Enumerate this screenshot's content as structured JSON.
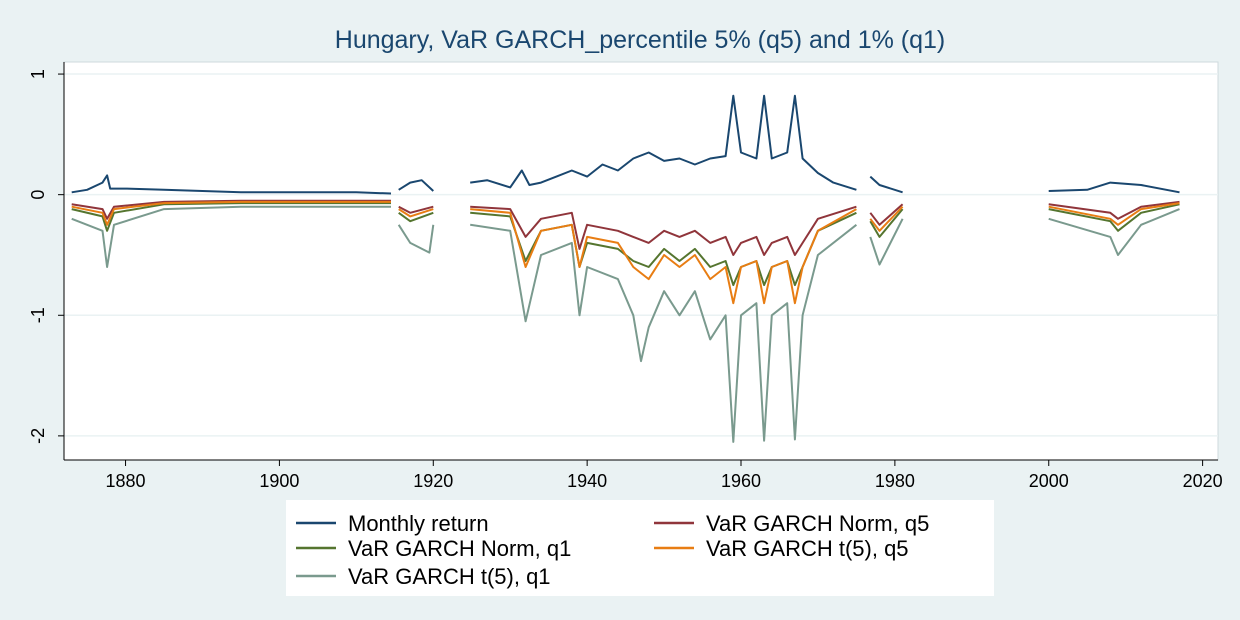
{
  "chart_data": {
    "type": "line",
    "title": "Hungary, VaR GARCH_percentile 5% (q5) and 1% (q1)",
    "xlabel": "",
    "ylabel": "",
    "xlim": [
      1872,
      2022
    ],
    "ylim": [
      -2.2,
      1.1
    ],
    "x_ticks": [
      1880,
      1900,
      1920,
      1940,
      1960,
      1980,
      2000,
      2020
    ],
    "y_ticks": [
      1,
      0,
      -1,
      -2
    ],
    "grid": true,
    "legend_position": "bottom",
    "segments": [
      [
        1873.0,
        1914.5
      ],
      [
        1915.5,
        1920.0
      ],
      [
        1924.8,
        1975.0
      ],
      [
        1976.8,
        1981.0
      ],
      [
        2000.0,
        2017.0
      ]
    ],
    "series": [
      {
        "name": "Monthly return",
        "color": "#1a476f",
        "points": [
          [
            1873.0,
            0.02
          ],
          [
            1875.0,
            0.04
          ],
          [
            1877.0,
            0.1
          ],
          [
            1877.6,
            0.16
          ],
          [
            1878.0,
            0.05
          ],
          [
            1880.0,
            0.05
          ],
          [
            1885.0,
            0.04
          ],
          [
            1890.0,
            0.03
          ],
          [
            1895.0,
            0.02
          ],
          [
            1900.0,
            0.02
          ],
          [
            1905.0,
            0.02
          ],
          [
            1910.0,
            0.02
          ],
          [
            1914.5,
            0.01
          ],
          [
            1915.5,
            0.04
          ],
          [
            1917.0,
            0.1
          ],
          [
            1918.5,
            0.12
          ],
          [
            1920.0,
            0.03
          ],
          [
            1924.8,
            0.1
          ],
          [
            1927.0,
            0.12
          ],
          [
            1930.0,
            0.06
          ],
          [
            1931.5,
            0.2
          ],
          [
            1932.5,
            0.08
          ],
          [
            1934.0,
            0.1
          ],
          [
            1936.0,
            0.15
          ],
          [
            1938.0,
            0.2
          ],
          [
            1940.0,
            0.15
          ],
          [
            1942.0,
            0.25
          ],
          [
            1944.0,
            0.2
          ],
          [
            1946.0,
            0.3
          ],
          [
            1948.0,
            0.35
          ],
          [
            1950.0,
            0.28
          ],
          [
            1952.0,
            0.3
          ],
          [
            1954.0,
            0.25
          ],
          [
            1956.0,
            0.3
          ],
          [
            1958.0,
            0.32
          ],
          [
            1959.0,
            0.82
          ],
          [
            1960.0,
            0.35
          ],
          [
            1962.0,
            0.3
          ],
          [
            1963.0,
            0.82
          ],
          [
            1964.0,
            0.3
          ],
          [
            1966.0,
            0.35
          ],
          [
            1967.0,
            0.82
          ],
          [
            1968.0,
            0.3
          ],
          [
            1970.0,
            0.18
          ],
          [
            1972.0,
            0.1
          ],
          [
            1975.0,
            0.04
          ],
          [
            1976.8,
            0.15
          ],
          [
            1978.0,
            0.08
          ],
          [
            1981.0,
            0.02
          ],
          [
            2000.0,
            0.03
          ],
          [
            2005.0,
            0.04
          ],
          [
            2008.0,
            0.1
          ],
          [
            2012.0,
            0.08
          ],
          [
            2017.0,
            0.02
          ]
        ]
      },
      {
        "name": "VaR GARCH Norm, q5",
        "color": "#90353b",
        "points": [
          [
            1873.0,
            -0.08
          ],
          [
            1877.0,
            -0.12
          ],
          [
            1877.6,
            -0.2
          ],
          [
            1878.5,
            -0.1
          ],
          [
            1885.0,
            -0.06
          ],
          [
            1895.0,
            -0.05
          ],
          [
            1905.0,
            -0.05
          ],
          [
            1914.5,
            -0.05
          ],
          [
            1915.5,
            -0.1
          ],
          [
            1917.0,
            -0.15
          ],
          [
            1920.0,
            -0.1
          ],
          [
            1924.8,
            -0.1
          ],
          [
            1930.0,
            -0.12
          ],
          [
            1932.0,
            -0.35
          ],
          [
            1934.0,
            -0.2
          ],
          [
            1938.0,
            -0.15
          ],
          [
            1939.0,
            -0.45
          ],
          [
            1940.0,
            -0.25
          ],
          [
            1944.0,
            -0.3
          ],
          [
            1946.0,
            -0.35
          ],
          [
            1948.0,
            -0.4
          ],
          [
            1950.0,
            -0.3
          ],
          [
            1952.0,
            -0.35
          ],
          [
            1954.0,
            -0.3
          ],
          [
            1956.0,
            -0.4
          ],
          [
            1958.0,
            -0.35
          ],
          [
            1959.0,
            -0.5
          ],
          [
            1960.0,
            -0.4
          ],
          [
            1962.0,
            -0.35
          ],
          [
            1963.0,
            -0.5
          ],
          [
            1964.0,
            -0.4
          ],
          [
            1966.0,
            -0.35
          ],
          [
            1967.0,
            -0.5
          ],
          [
            1968.0,
            -0.4
          ],
          [
            1970.0,
            -0.2
          ],
          [
            1975.0,
            -0.1
          ],
          [
            1976.8,
            -0.15
          ],
          [
            1978.0,
            -0.25
          ],
          [
            1981.0,
            -0.08
          ],
          [
            2000.0,
            -0.08
          ],
          [
            2008.0,
            -0.15
          ],
          [
            2009.0,
            -0.2
          ],
          [
            2012.0,
            -0.1
          ],
          [
            2017.0,
            -0.06
          ]
        ]
      },
      {
        "name": "VaR GARCH Norm, q1",
        "color": "#55752f",
        "points": [
          [
            1873.0,
            -0.12
          ],
          [
            1877.0,
            -0.18
          ],
          [
            1877.6,
            -0.3
          ],
          [
            1878.5,
            -0.15
          ],
          [
            1885.0,
            -0.08
          ],
          [
            1895.0,
            -0.07
          ],
          [
            1905.0,
            -0.07
          ],
          [
            1914.5,
            -0.07
          ],
          [
            1915.5,
            -0.15
          ],
          [
            1917.0,
            -0.22
          ],
          [
            1920.0,
            -0.15
          ],
          [
            1924.8,
            -0.15
          ],
          [
            1930.0,
            -0.18
          ],
          [
            1932.0,
            -0.55
          ],
          [
            1934.0,
            -0.3
          ],
          [
            1938.0,
            -0.25
          ],
          [
            1939.0,
            -0.6
          ],
          [
            1940.0,
            -0.4
          ],
          [
            1944.0,
            -0.45
          ],
          [
            1946.0,
            -0.55
          ],
          [
            1948.0,
            -0.6
          ],
          [
            1950.0,
            -0.45
          ],
          [
            1952.0,
            -0.55
          ],
          [
            1954.0,
            -0.45
          ],
          [
            1956.0,
            -0.6
          ],
          [
            1958.0,
            -0.55
          ],
          [
            1959.0,
            -0.75
          ],
          [
            1960.0,
            -0.6
          ],
          [
            1962.0,
            -0.55
          ],
          [
            1963.0,
            -0.75
          ],
          [
            1964.0,
            -0.6
          ],
          [
            1966.0,
            -0.55
          ],
          [
            1967.0,
            -0.75
          ],
          [
            1968.0,
            -0.6
          ],
          [
            1970.0,
            -0.3
          ],
          [
            1975.0,
            -0.15
          ],
          [
            1976.8,
            -0.22
          ],
          [
            1978.0,
            -0.35
          ],
          [
            1981.0,
            -0.12
          ],
          [
            2000.0,
            -0.12
          ],
          [
            2008.0,
            -0.22
          ],
          [
            2009.0,
            -0.3
          ],
          [
            2012.0,
            -0.15
          ],
          [
            2017.0,
            -0.08
          ]
        ]
      },
      {
        "name": "VaR GARCH t(5), q5",
        "color": "#e87d13",
        "points": [
          [
            1873.0,
            -0.1
          ],
          [
            1877.0,
            -0.15
          ],
          [
            1877.6,
            -0.25
          ],
          [
            1878.5,
            -0.12
          ],
          [
            1885.0,
            -0.07
          ],
          [
            1895.0,
            -0.06
          ],
          [
            1905.0,
            -0.06
          ],
          [
            1914.5,
            -0.06
          ],
          [
            1915.5,
            -0.12
          ],
          [
            1917.0,
            -0.18
          ],
          [
            1920.0,
            -0.12
          ],
          [
            1924.8,
            -0.12
          ],
          [
            1930.0,
            -0.15
          ],
          [
            1932.0,
            -0.6
          ],
          [
            1934.0,
            -0.3
          ],
          [
            1938.0,
            -0.25
          ],
          [
            1939.0,
            -0.6
          ],
          [
            1940.0,
            -0.35
          ],
          [
            1944.0,
            -0.4
          ],
          [
            1946.0,
            -0.6
          ],
          [
            1948.0,
            -0.7
          ],
          [
            1950.0,
            -0.5
          ],
          [
            1952.0,
            -0.6
          ],
          [
            1954.0,
            -0.5
          ],
          [
            1956.0,
            -0.7
          ],
          [
            1958.0,
            -0.6
          ],
          [
            1959.0,
            -0.9
          ],
          [
            1960.0,
            -0.6
          ],
          [
            1962.0,
            -0.55
          ],
          [
            1963.0,
            -0.9
          ],
          [
            1964.0,
            -0.6
          ],
          [
            1966.0,
            -0.55
          ],
          [
            1967.0,
            -0.9
          ],
          [
            1968.0,
            -0.6
          ],
          [
            1970.0,
            -0.3
          ],
          [
            1975.0,
            -0.12
          ],
          [
            1976.8,
            -0.2
          ],
          [
            1978.0,
            -0.3
          ],
          [
            1981.0,
            -0.1
          ],
          [
            2000.0,
            -0.1
          ],
          [
            2008.0,
            -0.2
          ],
          [
            2009.0,
            -0.25
          ],
          [
            2012.0,
            -0.12
          ],
          [
            2017.0,
            -0.07
          ]
        ]
      },
      {
        "name": "VaR GARCH t(5), q1",
        "color": "#7a9a8e",
        "points": [
          [
            1873.0,
            -0.2
          ],
          [
            1877.0,
            -0.3
          ],
          [
            1877.6,
            -0.6
          ],
          [
            1878.5,
            -0.25
          ],
          [
            1885.0,
            -0.12
          ],
          [
            1895.0,
            -0.1
          ],
          [
            1905.0,
            -0.1
          ],
          [
            1914.5,
            -0.1
          ],
          [
            1915.5,
            -0.25
          ],
          [
            1917.0,
            -0.4
          ],
          [
            1919.5,
            -0.48
          ],
          [
            1920.0,
            -0.25
          ],
          [
            1924.8,
            -0.25
          ],
          [
            1930.0,
            -0.3
          ],
          [
            1932.0,
            -1.05
          ],
          [
            1934.0,
            -0.5
          ],
          [
            1938.0,
            -0.4
          ],
          [
            1939.0,
            -1.0
          ],
          [
            1940.0,
            -0.6
          ],
          [
            1944.0,
            -0.7
          ],
          [
            1946.0,
            -1.0
          ],
          [
            1947.0,
            -1.38
          ],
          [
            1948.0,
            -1.1
          ],
          [
            1950.0,
            -0.8
          ],
          [
            1952.0,
            -1.0
          ],
          [
            1954.0,
            -0.8
          ],
          [
            1956.0,
            -1.2
          ],
          [
            1958.0,
            -1.0
          ],
          [
            1959.0,
            -2.05
          ],
          [
            1960.0,
            -1.0
          ],
          [
            1962.0,
            -0.9
          ],
          [
            1963.0,
            -2.04
          ],
          [
            1964.0,
            -1.0
          ],
          [
            1966.0,
            -0.9
          ],
          [
            1967.0,
            -2.03
          ],
          [
            1968.0,
            -1.0
          ],
          [
            1970.0,
            -0.5
          ],
          [
            1975.0,
            -0.25
          ],
          [
            1976.8,
            -0.35
          ],
          [
            1978.0,
            -0.58
          ],
          [
            1981.0,
            -0.2
          ],
          [
            2000.0,
            -0.2
          ],
          [
            2008.0,
            -0.35
          ],
          [
            2009.0,
            -0.5
          ],
          [
            2012.0,
            -0.25
          ],
          [
            2017.0,
            -0.12
          ]
        ]
      }
    ]
  }
}
